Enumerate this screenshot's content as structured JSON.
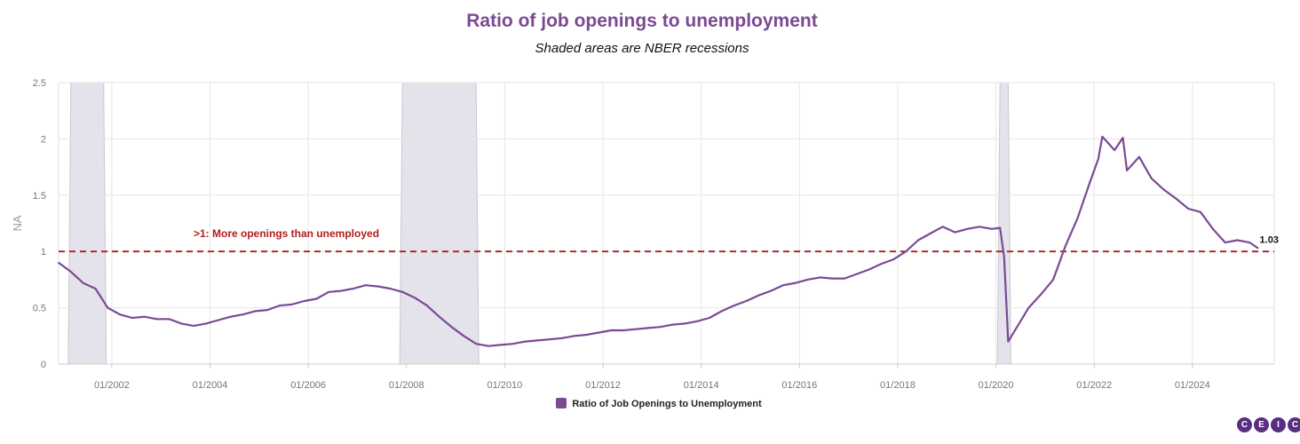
{
  "chart_data": {
    "type": "line",
    "title": "Ratio of job openings to unemployment",
    "subtitle": "Shaded areas are NBER recessions",
    "ylabel": "NA",
    "xlabel": "",
    "ylim": [
      0,
      2.5
    ],
    "yticks": [
      0,
      0.5,
      1,
      1.5,
      2,
      2.5
    ],
    "xlim": [
      "2000-12",
      "2025-09"
    ],
    "xticks": [
      "01/2002",
      "01/2004",
      "01/2006",
      "01/2008",
      "01/2010",
      "01/2012",
      "01/2014",
      "01/2016",
      "01/2018",
      "01/2020",
      "01/2022",
      "01/2024"
    ],
    "grid": true,
    "legend_position": "bottom",
    "series": [
      {
        "name": "Ratio of Job Openings to Unemployment",
        "color": "#7a4a93",
        "points": [
          [
            "2000-12",
            0.9
          ],
          [
            "2001-03",
            0.82
          ],
          [
            "2001-06",
            0.72
          ],
          [
            "2001-09",
            0.67
          ],
          [
            "2001-12",
            0.5
          ],
          [
            "2002-03",
            0.44
          ],
          [
            "2002-06",
            0.41
          ],
          [
            "2002-09",
            0.42
          ],
          [
            "2002-12",
            0.4
          ],
          [
            "2003-03",
            0.4
          ],
          [
            "2003-06",
            0.36
          ],
          [
            "2003-09",
            0.34
          ],
          [
            "2003-12",
            0.36
          ],
          [
            "2004-03",
            0.39
          ],
          [
            "2004-06",
            0.42
          ],
          [
            "2004-09",
            0.44
          ],
          [
            "2004-12",
            0.47
          ],
          [
            "2005-03",
            0.48
          ],
          [
            "2005-06",
            0.52
          ],
          [
            "2005-09",
            0.53
          ],
          [
            "2005-12",
            0.56
          ],
          [
            "2006-03",
            0.58
          ],
          [
            "2006-06",
            0.64
          ],
          [
            "2006-09",
            0.65
          ],
          [
            "2006-12",
            0.67
          ],
          [
            "2007-03",
            0.7
          ],
          [
            "2007-06",
            0.69
          ],
          [
            "2007-09",
            0.67
          ],
          [
            "2007-12",
            0.64
          ],
          [
            "2008-03",
            0.59
          ],
          [
            "2008-06",
            0.52
          ],
          [
            "2008-09",
            0.42
          ],
          [
            "2008-12",
            0.33
          ],
          [
            "2009-03",
            0.25
          ],
          [
            "2009-06",
            0.18
          ],
          [
            "2009-09",
            0.16
          ],
          [
            "2009-12",
            0.17
          ],
          [
            "2010-03",
            0.18
          ],
          [
            "2010-06",
            0.2
          ],
          [
            "2010-09",
            0.21
          ],
          [
            "2010-12",
            0.22
          ],
          [
            "2011-03",
            0.23
          ],
          [
            "2011-06",
            0.25
          ],
          [
            "2011-09",
            0.26
          ],
          [
            "2011-12",
            0.28
          ],
          [
            "2012-03",
            0.3
          ],
          [
            "2012-06",
            0.3
          ],
          [
            "2012-09",
            0.31
          ],
          [
            "2012-12",
            0.32
          ],
          [
            "2013-03",
            0.33
          ],
          [
            "2013-06",
            0.35
          ],
          [
            "2013-09",
            0.36
          ],
          [
            "2013-12",
            0.38
          ],
          [
            "2014-03",
            0.41
          ],
          [
            "2014-06",
            0.47
          ],
          [
            "2014-09",
            0.52
          ],
          [
            "2014-12",
            0.56
          ],
          [
            "2015-03",
            0.61
          ],
          [
            "2015-06",
            0.65
          ],
          [
            "2015-09",
            0.7
          ],
          [
            "2015-12",
            0.72
          ],
          [
            "2016-03",
            0.75
          ],
          [
            "2016-06",
            0.77
          ],
          [
            "2016-09",
            0.76
          ],
          [
            "2016-12",
            0.76
          ],
          [
            "2017-03",
            0.8
          ],
          [
            "2017-06",
            0.84
          ],
          [
            "2017-09",
            0.89
          ],
          [
            "2017-12",
            0.93
          ],
          [
            "2018-03",
            1.0
          ],
          [
            "2018-06",
            1.1
          ],
          [
            "2018-09",
            1.16
          ],
          [
            "2018-12",
            1.22
          ],
          [
            "2019-03",
            1.17
          ],
          [
            "2019-06",
            1.2
          ],
          [
            "2019-09",
            1.22
          ],
          [
            "2019-12",
            1.2
          ],
          [
            "2020-02",
            1.21
          ],
          [
            "2020-03",
            0.95
          ],
          [
            "2020-04",
            0.2
          ],
          [
            "2020-06",
            0.32
          ],
          [
            "2020-09",
            0.5
          ],
          [
            "2020-12",
            0.62
          ],
          [
            "2021-03",
            0.75
          ],
          [
            "2021-06",
            1.05
          ],
          [
            "2021-09",
            1.3
          ],
          [
            "2021-12",
            1.62
          ],
          [
            "2022-02",
            1.82
          ],
          [
            "2022-03",
            2.02
          ],
          [
            "2022-06",
            1.9
          ],
          [
            "2022-08",
            2.01
          ],
          [
            "2022-09",
            1.72
          ],
          [
            "2022-12",
            1.84
          ],
          [
            "2023-03",
            1.65
          ],
          [
            "2023-06",
            1.55
          ],
          [
            "2023-09",
            1.47
          ],
          [
            "2023-12",
            1.38
          ],
          [
            "2024-03",
            1.35
          ],
          [
            "2024-06",
            1.2
          ],
          [
            "2024-09",
            1.08
          ],
          [
            "2024-12",
            1.1
          ],
          [
            "2025-03",
            1.08
          ],
          [
            "2025-05",
            1.03
          ]
        ]
      }
    ],
    "recessions": [
      [
        "2001-03",
        "2001-11"
      ],
      [
        "2007-12",
        "2009-06"
      ],
      [
        "2020-02",
        "2020-04"
      ]
    ],
    "reference_line": {
      "value": 1,
      "color": "#b01c1c",
      "label": ">1: More openings than unemployed"
    },
    "last_value_label": "1.03"
  },
  "colors": {
    "title": "#7a4a93",
    "series": "#7a4a93",
    "recession_fill": "#e4e2ea",
    "reference": "#b01c1c"
  },
  "legend": {
    "label": "Ratio of Job Openings to Unemployment"
  },
  "logo": {
    "letters": [
      "C",
      "E",
      "I",
      "C"
    ]
  }
}
